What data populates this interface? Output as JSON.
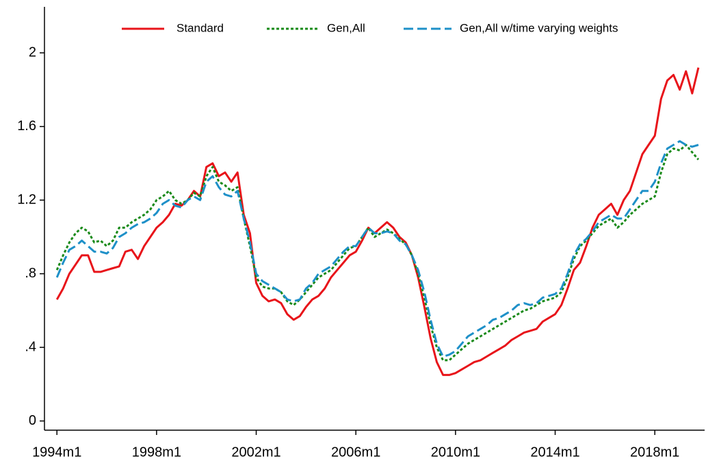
{
  "chart_data": {
    "type": "line",
    "x": [
      1994,
      1994.25,
      1994.5,
      1994.75,
      1995,
      1995.25,
      1995.5,
      1995.75,
      1996,
      1996.25,
      1996.5,
      1996.75,
      1997,
      1997.25,
      1997.5,
      1997.75,
      1998,
      1998.25,
      1998.5,
      1998.75,
      1999,
      1999.25,
      1999.5,
      1999.75,
      2000,
      2000.25,
      2000.5,
      2000.75,
      2001,
      2001.25,
      2001.5,
      2001.75,
      2002,
      2002.25,
      2002.5,
      2002.75,
      2003,
      2003.25,
      2003.5,
      2003.75,
      2004,
      2004.25,
      2004.5,
      2004.75,
      2005,
      2005.25,
      2005.5,
      2005.75,
      2006,
      2006.25,
      2006.5,
      2006.75,
      2007,
      2007.25,
      2007.5,
      2007.75,
      2008,
      2008.25,
      2008.5,
      2008.75,
      2009,
      2009.25,
      2009.5,
      2009.75,
      2010,
      2010.25,
      2010.5,
      2010.75,
      2011,
      2011.25,
      2011.5,
      2011.75,
      2012,
      2012.25,
      2012.5,
      2012.75,
      2013,
      2013.25,
      2013.5,
      2013.75,
      2014,
      2014.25,
      2014.5,
      2014.75,
      2015,
      2015.25,
      2015.5,
      2015.75,
      2016,
      2016.25,
      2016.5,
      2016.75,
      2017,
      2017.25,
      2017.5,
      2017.75,
      2018,
      2018.25,
      2018.5,
      2018.75,
      2019,
      2019.25,
      2019.5,
      2019.75
    ],
    "series": [
      {
        "name": "Standard",
        "color": "#e8141a",
        "style": "solid",
        "values": [
          0.66,
          0.72,
          0.8,
          0.85,
          0.9,
          0.9,
          0.81,
          0.81,
          0.82,
          0.83,
          0.84,
          0.92,
          0.93,
          0.88,
          0.95,
          1.0,
          1.05,
          1.08,
          1.12,
          1.18,
          1.17,
          1.2,
          1.25,
          1.22,
          1.38,
          1.4,
          1.33,
          1.35,
          1.3,
          1.35,
          1.12,
          1.02,
          0.75,
          0.68,
          0.65,
          0.66,
          0.64,
          0.58,
          0.55,
          0.57,
          0.62,
          0.66,
          0.68,
          0.72,
          0.78,
          0.82,
          0.86,
          0.9,
          0.92,
          0.98,
          1.05,
          1.02,
          1.05,
          1.08,
          1.05,
          1.0,
          0.97,
          0.9,
          0.78,
          0.62,
          0.45,
          0.32,
          0.25,
          0.25,
          0.26,
          0.28,
          0.3,
          0.32,
          0.33,
          0.35,
          0.37,
          0.39,
          0.41,
          0.44,
          0.46,
          0.48,
          0.49,
          0.5,
          0.54,
          0.56,
          0.58,
          0.63,
          0.72,
          0.82,
          0.86,
          0.95,
          1.05,
          1.12,
          1.15,
          1.18,
          1.12,
          1.2,
          1.25,
          1.35,
          1.45,
          1.5,
          1.55,
          1.75,
          1.85,
          1.88,
          1.8,
          1.9,
          1.78,
          1.92
        ]
      },
      {
        "name": "Gen,All",
        "color": "#1a8a1a",
        "style": "dotted",
        "values": [
          0.82,
          0.9,
          0.97,
          1.02,
          1.05,
          1.03,
          0.97,
          0.98,
          0.95,
          0.98,
          1.05,
          1.05,
          1.08,
          1.1,
          1.12,
          1.15,
          1.2,
          1.22,
          1.25,
          1.2,
          1.18,
          1.2,
          1.24,
          1.22,
          1.33,
          1.38,
          1.3,
          1.28,
          1.25,
          1.27,
          1.1,
          0.95,
          0.78,
          0.73,
          0.72,
          0.72,
          0.7,
          0.65,
          0.63,
          0.66,
          0.7,
          0.74,
          0.78,
          0.8,
          0.82,
          0.86,
          0.9,
          0.94,
          0.95,
          1.0,
          1.05,
          1.0,
          1.02,
          1.04,
          1.02,
          0.99,
          0.96,
          0.9,
          0.8,
          0.67,
          0.52,
          0.4,
          0.33,
          0.33,
          0.36,
          0.39,
          0.42,
          0.44,
          0.46,
          0.48,
          0.5,
          0.52,
          0.54,
          0.56,
          0.58,
          0.6,
          0.61,
          0.63,
          0.65,
          0.66,
          0.67,
          0.7,
          0.78,
          0.88,
          0.95,
          0.98,
          1.02,
          1.06,
          1.08,
          1.1,
          1.05,
          1.08,
          1.12,
          1.15,
          1.18,
          1.2,
          1.22,
          1.35,
          1.45,
          1.48,
          1.47,
          1.5,
          1.46,
          1.42
        ]
      },
      {
        "name": "Gen,All w/time varying weights",
        "color": "#1e90c8",
        "style": "dashed",
        "values": [
          0.78,
          0.86,
          0.93,
          0.95,
          0.98,
          0.95,
          0.92,
          0.92,
          0.91,
          0.94,
          1.0,
          1.02,
          1.05,
          1.07,
          1.08,
          1.1,
          1.13,
          1.18,
          1.2,
          1.17,
          1.16,
          1.2,
          1.22,
          1.2,
          1.3,
          1.33,
          1.27,
          1.23,
          1.22,
          1.25,
          1.1,
          0.97,
          0.8,
          0.76,
          0.74,
          0.72,
          0.7,
          0.66,
          0.65,
          0.66,
          0.72,
          0.75,
          0.8,
          0.82,
          0.84,
          0.88,
          0.92,
          0.95,
          0.95,
          1.0,
          1.05,
          1.02,
          1.02,
          1.03,
          1.02,
          0.98,
          0.96,
          0.9,
          0.82,
          0.7,
          0.55,
          0.42,
          0.35,
          0.36,
          0.38,
          0.42,
          0.46,
          0.48,
          0.5,
          0.52,
          0.55,
          0.56,
          0.58,
          0.6,
          0.63,
          0.64,
          0.63,
          0.64,
          0.67,
          0.68,
          0.69,
          0.72,
          0.8,
          0.9,
          0.96,
          0.99,
          1.03,
          1.08,
          1.1,
          1.12,
          1.1,
          1.1,
          1.15,
          1.2,
          1.25,
          1.25,
          1.3,
          1.4,
          1.48,
          1.5,
          1.52,
          1.5,
          1.49,
          1.5
        ]
      }
    ],
    "xlim": [
      1993.5,
      2020
    ],
    "xticks": [
      {
        "value": 1994,
        "label": "1994m1"
      },
      {
        "value": 1998,
        "label": "1998m1"
      },
      {
        "value": 2002,
        "label": "2002m1"
      },
      {
        "value": 2006,
        "label": "2006m1"
      },
      {
        "value": 2010,
        "label": "2010m1"
      },
      {
        "value": 2014,
        "label": "2014m1"
      },
      {
        "value": 2018,
        "label": "2018m1"
      }
    ],
    "ylim": [
      -0.05,
      2.25
    ],
    "yticks": [
      0,
      {
        "value": 0.4,
        "label": ".4"
      },
      {
        "value": 0.8,
        "label": ".8"
      },
      1.2,
      1.6,
      2
    ],
    "grid": false,
    "legend": "top"
  }
}
